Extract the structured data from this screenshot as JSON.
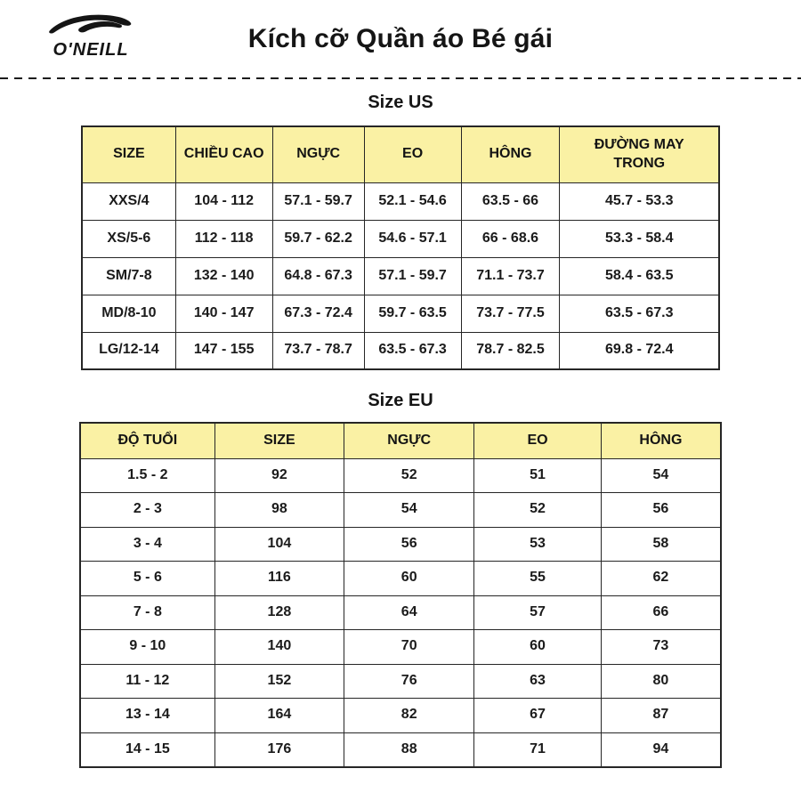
{
  "brand": {
    "logo_text": "O'NEILL"
  },
  "header": {
    "title": "Kích cỡ Quần áo Bé gái"
  },
  "colors": {
    "table_header_bg": "#FAF1A4",
    "border": "#262626",
    "text": "#1B1B1B",
    "background": "#FFFFFF"
  },
  "tables": [
    {
      "section_title": "Size US",
      "columns": [
        "SIZE",
        "CHIỀU CAO",
        "NGỰC",
        "EO",
        "HÔNG",
        "ĐƯỜNG MAY TRONG"
      ],
      "rows": [
        [
          "XXS/4",
          "104 - 112",
          "57.1 - 59.7",
          "52.1 - 54.6",
          "63.5 - 66",
          "45.7 - 53.3"
        ],
        [
          "XS/5-6",
          "112 - 118",
          "59.7 - 62.2",
          "54.6 - 57.1",
          "66 - 68.6",
          "53.3 - 58.4"
        ],
        [
          "SM/7-8",
          "132 - 140",
          "64.8 - 67.3",
          "57.1 - 59.7",
          "71.1 - 73.7",
          "58.4 - 63.5"
        ],
        [
          "MD/8-10",
          "140 - 147",
          "67.3 - 72.4",
          "59.7 - 63.5",
          "73.7 - 77.5",
          "63.5 - 67.3"
        ],
        [
          "LG/12-14",
          "147 - 155",
          "73.7 - 78.7",
          "63.5 - 67.3",
          "78.7 - 82.5",
          "69.8 - 72.4"
        ]
      ]
    },
    {
      "section_title": "Size EU",
      "columns": [
        "ĐỘ TUỔI",
        "SIZE",
        "NGỰC",
        "EO",
        "HÔNG"
      ],
      "rows": [
        [
          "1.5 - 2",
          "92",
          "52",
          "51",
          "54"
        ],
        [
          "2 - 3",
          "98",
          "54",
          "52",
          "56"
        ],
        [
          "3 - 4",
          "104",
          "56",
          "53",
          "58"
        ],
        [
          "5 - 6",
          "116",
          "60",
          "55",
          "62"
        ],
        [
          "7 - 8",
          "128",
          "64",
          "57",
          "66"
        ],
        [
          "9 - 10",
          "140",
          "70",
          "60",
          "73"
        ],
        [
          "11 - 12",
          "152",
          "76",
          "63",
          "80"
        ],
        [
          "13 - 14",
          "164",
          "82",
          "67",
          "87"
        ],
        [
          "14 - 15",
          "176",
          "88",
          "71",
          "94"
        ]
      ]
    }
  ]
}
